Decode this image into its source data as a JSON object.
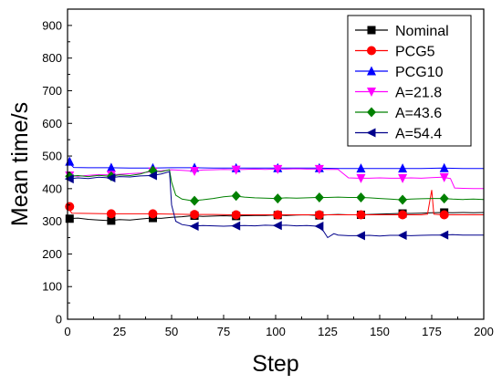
{
  "chart_data": {
    "type": "line",
    "title": "",
    "xlabel": "Step",
    "ylabel": "Mean time/s",
    "xlim": [
      0,
      200
    ],
    "ylim": [
      0,
      950
    ],
    "x_ticks": [
      0,
      25,
      50,
      75,
      100,
      125,
      150,
      175,
      200
    ],
    "y_ticks": [
      0,
      100,
      200,
      300,
      400,
      500,
      600,
      700,
      800,
      900
    ],
    "grid": false,
    "legend_position": "top-right",
    "series": [
      {
        "name": "Nominal",
        "color": "#000000",
        "marker": "square",
        "markers": [
          [
            1,
            308
          ],
          [
            21,
            302
          ],
          [
            41,
            310
          ],
          [
            61,
            317
          ],
          [
            81,
            316
          ],
          [
            101,
            319
          ],
          [
            121,
            318
          ],
          [
            141,
            320
          ],
          [
            161,
            324
          ],
          [
            181,
            327
          ]
        ],
        "line": [
          [
            0,
            308
          ],
          [
            5,
            310
          ],
          [
            10,
            306
          ],
          [
            15,
            304
          ],
          [
            20,
            302
          ],
          [
            25,
            305
          ],
          [
            30,
            304
          ],
          [
            35,
            307
          ],
          [
            40,
            310
          ],
          [
            45,
            309
          ],
          [
            50,
            312
          ],
          [
            55,
            314
          ],
          [
            60,
            317
          ],
          [
            65,
            315
          ],
          [
            70,
            316
          ],
          [
            75,
            317
          ],
          [
            80,
            316
          ],
          [
            85,
            317
          ],
          [
            90,
            318
          ],
          [
            95,
            318
          ],
          [
            100,
            319
          ],
          [
            105,
            318
          ],
          [
            110,
            319
          ],
          [
            115,
            320
          ],
          [
            120,
            318
          ],
          [
            125,
            320
          ],
          [
            130,
            321
          ],
          [
            135,
            320
          ],
          [
            140,
            320
          ],
          [
            145,
            321
          ],
          [
            150,
            322
          ],
          [
            155,
            323
          ],
          [
            160,
            324
          ],
          [
            165,
            324
          ],
          [
            170,
            325
          ],
          [
            175,
            326
          ],
          [
            180,
            327
          ],
          [
            185,
            326
          ],
          [
            190,
            327
          ],
          [
            195,
            326
          ],
          [
            200,
            327
          ]
        ]
      },
      {
        "name": "PCG5",
        "color": "#ff0000",
        "marker": "circle",
        "markers": [
          [
            1,
            345
          ],
          [
            21,
            323
          ],
          [
            41,
            323
          ],
          [
            61,
            321
          ],
          [
            81,
            320
          ],
          [
            101,
            320
          ],
          [
            121,
            320
          ],
          [
            141,
            320
          ],
          [
            161,
            320
          ],
          [
            181,
            320
          ]
        ],
        "line": [
          [
            0,
            345
          ],
          [
            2,
            325
          ],
          [
            10,
            324
          ],
          [
            20,
            323
          ],
          [
            30,
            323
          ],
          [
            40,
            323
          ],
          [
            50,
            322
          ],
          [
            60,
            321
          ],
          [
            70,
            321
          ],
          [
            80,
            320
          ],
          [
            90,
            320
          ],
          [
            100,
            320
          ],
          [
            110,
            320
          ],
          [
            120,
            320
          ],
          [
            130,
            320
          ],
          [
            140,
            320
          ],
          [
            150,
            320
          ],
          [
            160,
            320
          ],
          [
            170,
            320
          ],
          [
            173,
            322
          ],
          [
            175,
            396
          ],
          [
            176,
            322
          ],
          [
            180,
            320
          ],
          [
            190,
            320
          ],
          [
            200,
            320
          ]
        ]
      },
      {
        "name": "PCG10",
        "color": "#0000ff",
        "marker": "triangle-up",
        "markers": [
          [
            1,
            483
          ],
          [
            21,
            464
          ],
          [
            41,
            463
          ],
          [
            61,
            464
          ],
          [
            81,
            463
          ],
          [
            101,
            463
          ],
          [
            121,
            463
          ],
          [
            141,
            462
          ],
          [
            161,
            462
          ],
          [
            181,
            463
          ]
        ],
        "line": [
          [
            0,
            483
          ],
          [
            3,
            465
          ],
          [
            10,
            464
          ],
          [
            20,
            464
          ],
          [
            30,
            463
          ],
          [
            40,
            463
          ],
          [
            50,
            464
          ],
          [
            60,
            464
          ],
          [
            70,
            463
          ],
          [
            80,
            463
          ],
          [
            90,
            463
          ],
          [
            100,
            463
          ],
          [
            110,
            463
          ],
          [
            120,
            463
          ],
          [
            130,
            462
          ],
          [
            140,
            462
          ],
          [
            150,
            462
          ],
          [
            160,
            462
          ],
          [
            170,
            462
          ],
          [
            180,
            463
          ],
          [
            190,
            462
          ],
          [
            200,
            462
          ]
        ]
      },
      {
        "name": "A=21.8",
        "color": "#ff00ff",
        "marker": "triangle-down",
        "markers": [
          [
            1,
            440
          ],
          [
            21,
            442
          ],
          [
            41,
            452
          ],
          [
            61,
            454
          ],
          [
            81,
            458
          ],
          [
            101,
            460
          ],
          [
            121,
            460
          ],
          [
            141,
            432
          ],
          [
            161,
            432
          ],
          [
            181,
            435
          ]
        ],
        "line": [
          [
            0,
            440
          ],
          [
            5,
            438
          ],
          [
            10,
            441
          ],
          [
            15,
            443
          ],
          [
            20,
            442
          ],
          [
            25,
            444
          ],
          [
            30,
            446
          ],
          [
            35,
            448
          ],
          [
            40,
            452
          ],
          [
            45,
            455
          ],
          [
            50,
            458
          ],
          [
            55,
            456
          ],
          [
            60,
            454
          ],
          [
            65,
            457
          ],
          [
            70,
            458
          ],
          [
            75,
            459
          ],
          [
            80,
            458
          ],
          [
            85,
            459
          ],
          [
            90,
            460
          ],
          [
            95,
            459
          ],
          [
            100,
            460
          ],
          [
            105,
            460
          ],
          [
            110,
            461
          ],
          [
            115,
            460
          ],
          [
            120,
            460
          ],
          [
            125,
            459
          ],
          [
            130,
            459
          ],
          [
            135,
            433
          ],
          [
            140,
            432
          ],
          [
            145,
            432
          ],
          [
            150,
            433
          ],
          [
            155,
            432
          ],
          [
            160,
            432
          ],
          [
            165,
            433
          ],
          [
            170,
            432
          ],
          [
            175,
            434
          ],
          [
            180,
            435
          ],
          [
            184,
            431
          ],
          [
            186,
            402
          ],
          [
            190,
            401
          ],
          [
            195,
            400
          ],
          [
            200,
            400
          ]
        ]
      },
      {
        "name": "A=43.6",
        "color": "#008000",
        "marker": "diamond",
        "markers": [
          [
            1,
            438
          ],
          [
            21,
            438
          ],
          [
            41,
            455
          ],
          [
            61,
            363
          ],
          [
            81,
            378
          ],
          [
            101,
            370
          ],
          [
            121,
            373
          ],
          [
            141,
            373
          ],
          [
            161,
            366
          ],
          [
            181,
            370
          ]
        ],
        "line": [
          [
            0,
            438
          ],
          [
            5,
            440
          ],
          [
            10,
            437
          ],
          [
            15,
            441
          ],
          [
            20,
            438
          ],
          [
            25,
            442
          ],
          [
            30,
            440
          ],
          [
            35,
            445
          ],
          [
            40,
            455
          ],
          [
            45,
            452
          ],
          [
            49,
            458
          ],
          [
            50,
            420
          ],
          [
            52,
            380
          ],
          [
            55,
            368
          ],
          [
            60,
            363
          ],
          [
            65,
            366
          ],
          [
            70,
            370
          ],
          [
            75,
            375
          ],
          [
            80,
            378
          ],
          [
            85,
            374
          ],
          [
            90,
            372
          ],
          [
            95,
            371
          ],
          [
            100,
            370
          ],
          [
            105,
            372
          ],
          [
            110,
            371
          ],
          [
            115,
            372
          ],
          [
            120,
            373
          ],
          [
            125,
            373
          ],
          [
            130,
            374
          ],
          [
            135,
            373
          ],
          [
            140,
            373
          ],
          [
            145,
            372
          ],
          [
            150,
            370
          ],
          [
            155,
            368
          ],
          [
            160,
            366
          ],
          [
            165,
            368
          ],
          [
            170,
            369
          ],
          [
            175,
            370
          ],
          [
            180,
            370
          ],
          [
            185,
            368
          ],
          [
            190,
            367
          ],
          [
            195,
            368
          ],
          [
            200,
            367
          ]
        ]
      },
      {
        "name": "A=54.4",
        "color": "#00008b",
        "marker": "triangle-left",
        "markers": [
          [
            1,
            430
          ],
          [
            21,
            433
          ],
          [
            41,
            440
          ],
          [
            61,
            285
          ],
          [
            81,
            286
          ],
          [
            101,
            287
          ],
          [
            121,
            285
          ],
          [
            141,
            256
          ],
          [
            161,
            257
          ],
          [
            181,
            258
          ]
        ],
        "line": [
          [
            0,
            430
          ],
          [
            5,
            433
          ],
          [
            10,
            431
          ],
          [
            15,
            435
          ],
          [
            20,
            433
          ],
          [
            25,
            437
          ],
          [
            30,
            436
          ],
          [
            35,
            439
          ],
          [
            40,
            440
          ],
          [
            45,
            445
          ],
          [
            49,
            452
          ],
          [
            50,
            350
          ],
          [
            52,
            300
          ],
          [
            55,
            290
          ],
          [
            60,
            285
          ],
          [
            65,
            287
          ],
          [
            70,
            286
          ],
          [
            75,
            285
          ],
          [
            80,
            286
          ],
          [
            85,
            287
          ],
          [
            90,
            286
          ],
          [
            95,
            288
          ],
          [
            100,
            287
          ],
          [
            105,
            288
          ],
          [
            110,
            286
          ],
          [
            115,
            287
          ],
          [
            120,
            285
          ],
          [
            123,
            270
          ],
          [
            125,
            250
          ],
          [
            128,
            262
          ],
          [
            130,
            258
          ],
          [
            135,
            256
          ],
          [
            140,
            256
          ],
          [
            145,
            257
          ],
          [
            150,
            255
          ],
          [
            155,
            257
          ],
          [
            160,
            257
          ],
          [
            165,
            256
          ],
          [
            170,
            257
          ],
          [
            175,
            258
          ],
          [
            180,
            258
          ],
          [
            185,
            259
          ],
          [
            190,
            258
          ],
          [
            195,
            258
          ],
          [
            200,
            258
          ]
        ]
      }
    ]
  }
}
